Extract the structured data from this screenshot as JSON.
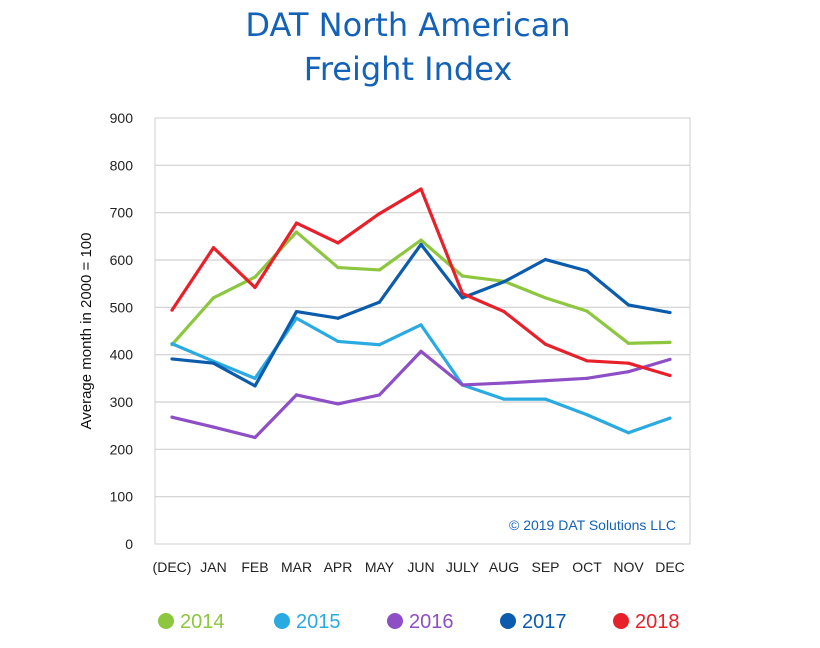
{
  "chart_data": {
    "type": "line",
    "title": [
      "DAT North American",
      "Freight Index"
    ],
    "ylabel": "Average month in 2000 = 100",
    "xlabel": "",
    "ylim": [
      0,
      900
    ],
    "yticks": [
      0,
      100,
      200,
      300,
      400,
      500,
      600,
      700,
      800,
      900
    ],
    "grid": true,
    "legend_position": "bottom",
    "annotation": "© 2019 DAT Solutions LLC",
    "categories": [
      "(DEC)",
      "JAN",
      "FEB",
      "MAR",
      "APR",
      "MAY",
      "JUN",
      "JULY",
      "AUG",
      "SEP",
      "OCT",
      "NOV",
      "DEC"
    ],
    "series": [
      {
        "name": "2014",
        "color": "#8dc63f",
        "values": [
          421,
          520,
          564,
          659,
          584,
          579,
          642,
          566,
          555,
          520,
          492,
          424,
          426
        ]
      },
      {
        "name": "2015",
        "color": "#29abe2",
        "values": [
          423,
          386,
          350,
          477,
          428,
          421,
          463,
          336,
          306,
          306,
          273,
          235,
          266
        ]
      },
      {
        "name": "2016",
        "color": "#8e4fc6",
        "values": [
          268,
          247,
          225,
          315,
          296,
          315,
          407,
          336,
          340,
          345,
          350,
          364,
          390
        ]
      },
      {
        "name": "2017",
        "color": "#0b5cad",
        "values": [
          391,
          382,
          334,
          491,
          477,
          511,
          633,
          520,
          554,
          601,
          577,
          505,
          489
        ]
      },
      {
        "name": "2018",
        "color": "#e8202a",
        "values": [
          494,
          626,
          542,
          678,
          636,
          698,
          750,
          529,
          491,
          422,
          387,
          382,
          356
        ]
      }
    ]
  }
}
